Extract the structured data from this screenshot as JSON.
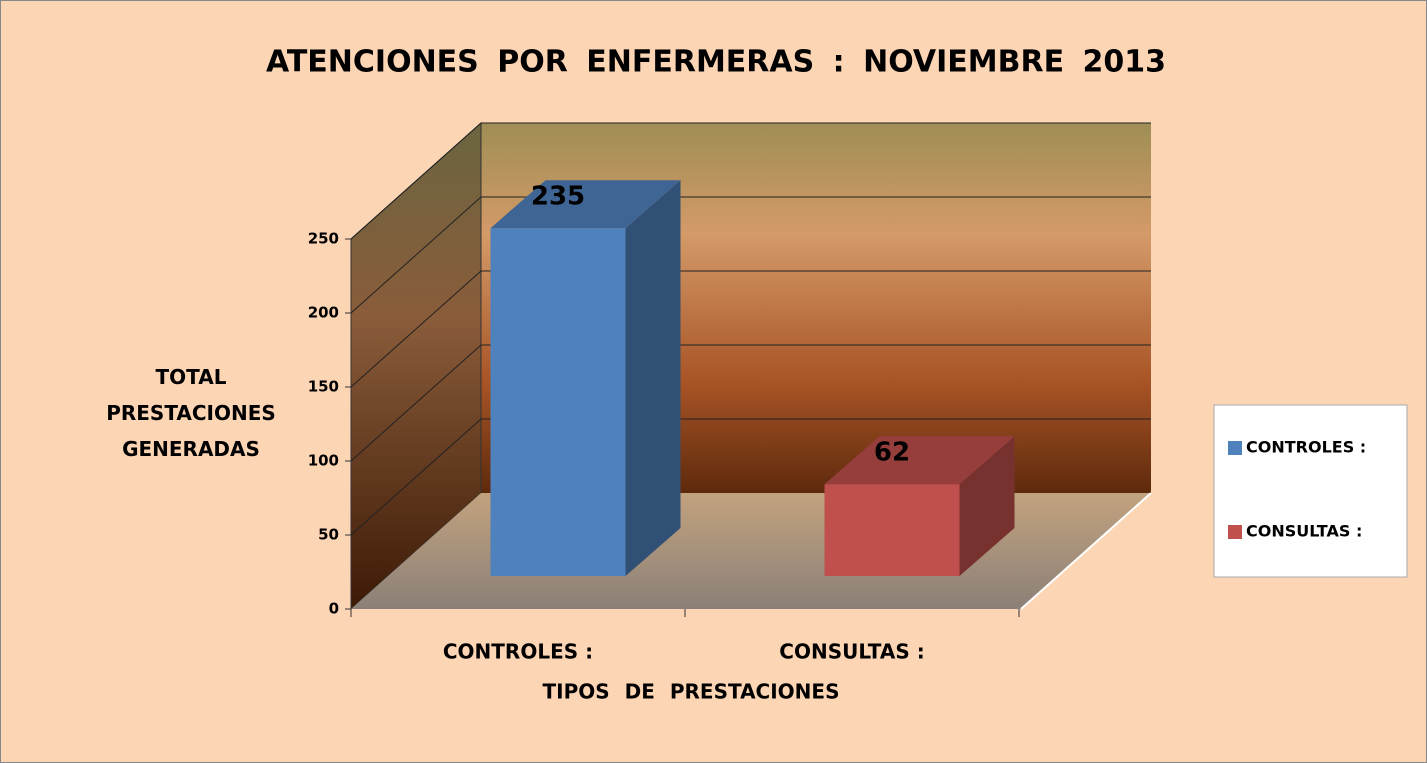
{
  "chart_data": {
    "type": "bar3d",
    "title": "ATENCIONES POR ENFERMERAS : NOVIEMBRE 2013",
    "categories": [
      "CONTROLES :",
      "CONSULTAS :"
    ],
    "values": [
      235,
      62
    ],
    "colors": [
      "#4f81bd",
      "#c0504d"
    ],
    "xlabel": "TIPOS DE PRESTACIONES",
    "ylabel": "TOTAL PRESTACIONES GENERADAS",
    "ylim": [
      0,
      250
    ],
    "yticks": [
      0,
      50,
      100,
      150,
      200,
      250
    ],
    "grid": true,
    "legend": "right"
  }
}
